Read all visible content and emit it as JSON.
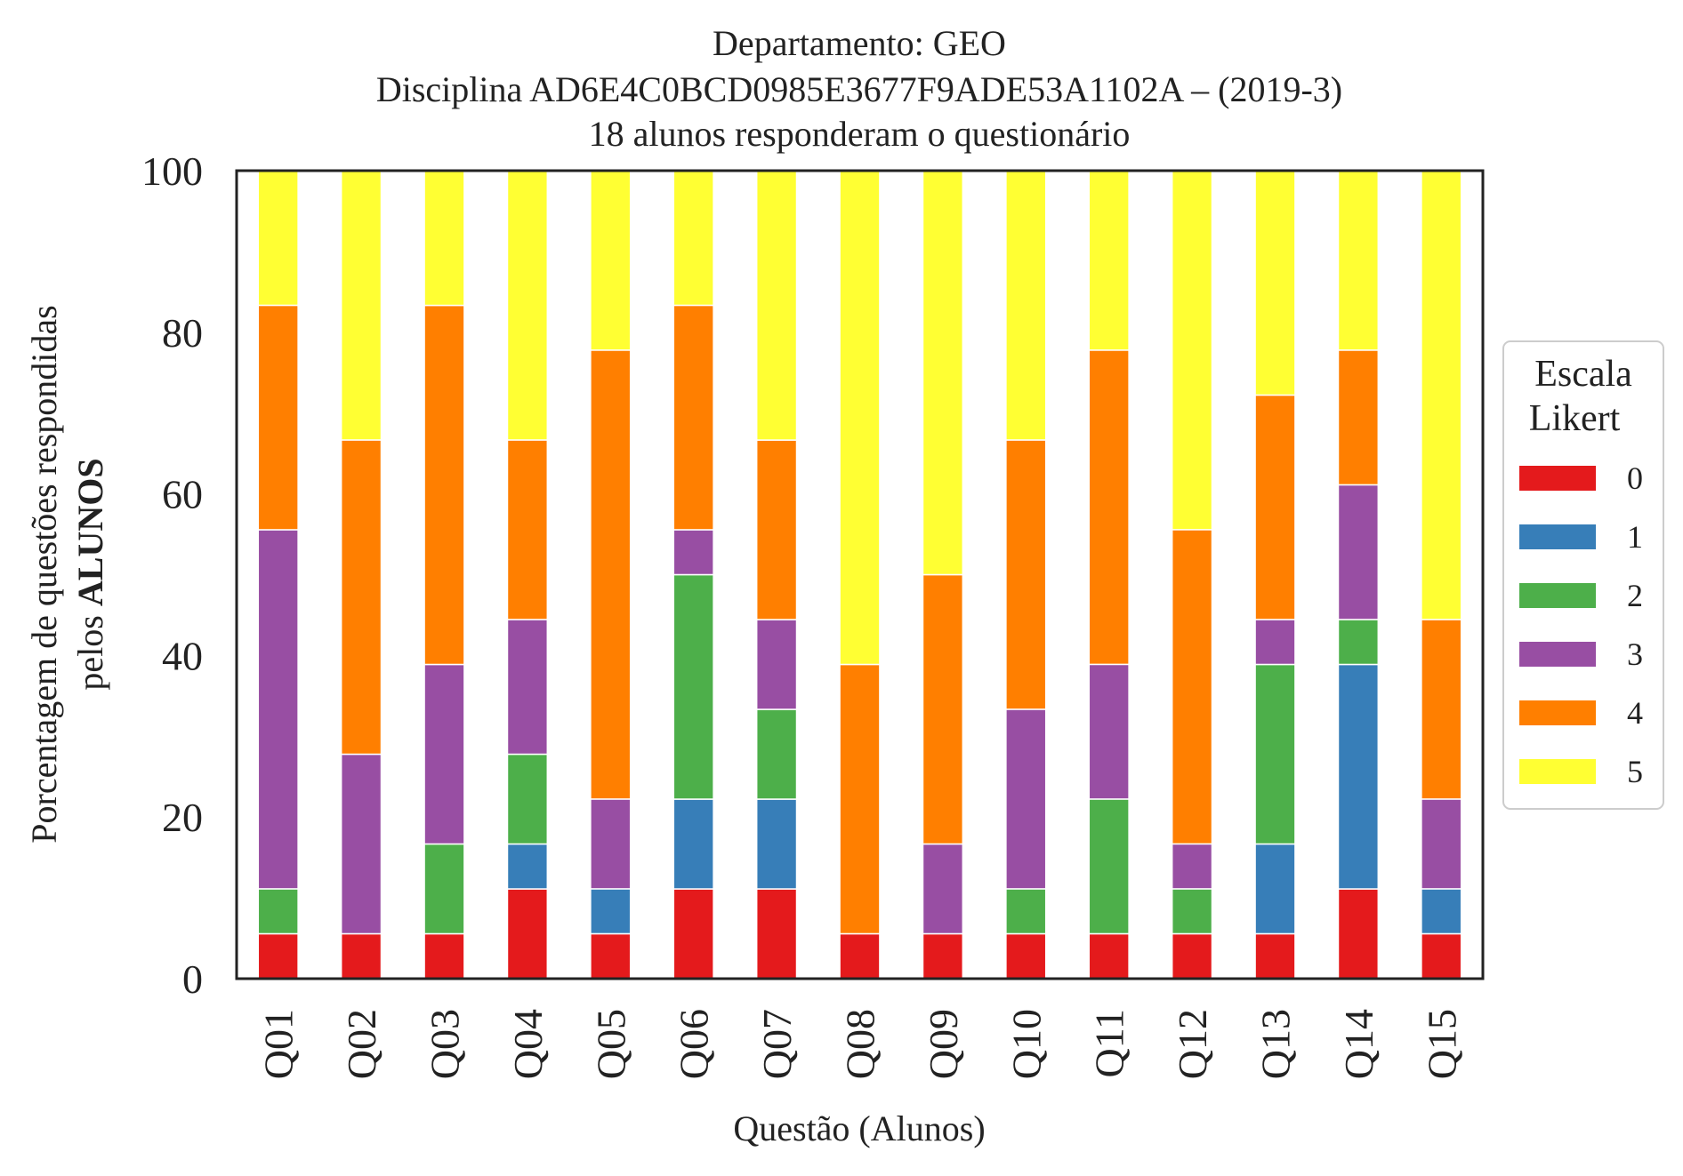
{
  "chart_data": {
    "type": "bar",
    "stacked": true,
    "title_lines": [
      "Departamento: GEO",
      "Disciplina AD6E4C0BCD0985E3677F9ADE53A1102A – (2019-3)",
      "18 alunos responderam o questionário"
    ],
    "xlabel": "Questão (Alunos)",
    "ylabel_line1": "Porcentagem de questões respondidas",
    "ylabel_line2_prefix": "pelos ",
    "ylabel_line2_bold": "ALUNOS",
    "ylim": [
      0,
      100
    ],
    "yticks": [
      "0",
      "20",
      "40",
      "60",
      "80",
      "100"
    ],
    "categories": [
      "Q01",
      "Q02",
      "Q03",
      "Q04",
      "Q05",
      "Q06",
      "Q07",
      "Q08",
      "Q09",
      "Q10",
      "Q11",
      "Q12",
      "Q13",
      "Q14",
      "Q15"
    ],
    "legend": {
      "title_lines": [
        "Escala",
        "Likert"
      ],
      "placement": "center-right"
    },
    "series": [
      {
        "name": "0",
        "color": "#e41a1c",
        "values": [
          5.56,
          5.56,
          5.56,
          11.11,
          5.56,
          11.11,
          11.11,
          5.56,
          5.56,
          5.56,
          5.56,
          5.56,
          5.56,
          11.11,
          5.56
        ]
      },
      {
        "name": "1",
        "color": "#377eb8",
        "values": [
          0,
          0,
          0,
          5.56,
          5.56,
          11.11,
          11.11,
          0,
          0,
          0,
          0,
          0,
          11.11,
          27.78,
          5.56
        ]
      },
      {
        "name": "2",
        "color": "#4daf4a",
        "values": [
          5.56,
          0,
          11.11,
          11.11,
          0,
          27.78,
          11.11,
          0,
          0,
          5.56,
          16.67,
          5.56,
          22.22,
          5.56,
          0
        ]
      },
      {
        "name": "3",
        "color": "#984ea3",
        "values": [
          44.44,
          22.22,
          22.22,
          16.67,
          11.11,
          5.56,
          11.11,
          0,
          11.11,
          22.22,
          16.67,
          5.56,
          5.56,
          16.67,
          11.11
        ]
      },
      {
        "name": "4",
        "color": "#ff7f00",
        "values": [
          27.78,
          38.89,
          44.44,
          22.22,
          55.56,
          27.78,
          22.22,
          33.33,
          33.33,
          33.33,
          38.89,
          38.89,
          27.78,
          16.67,
          22.22
        ]
      },
      {
        "name": "5",
        "color": "#ffff33",
        "values": [
          16.67,
          33.33,
          16.67,
          33.33,
          22.22,
          16.67,
          33.33,
          61.11,
          50.0,
          33.33,
          22.22,
          44.44,
          27.78,
          22.22,
          55.56
        ]
      }
    ]
  }
}
